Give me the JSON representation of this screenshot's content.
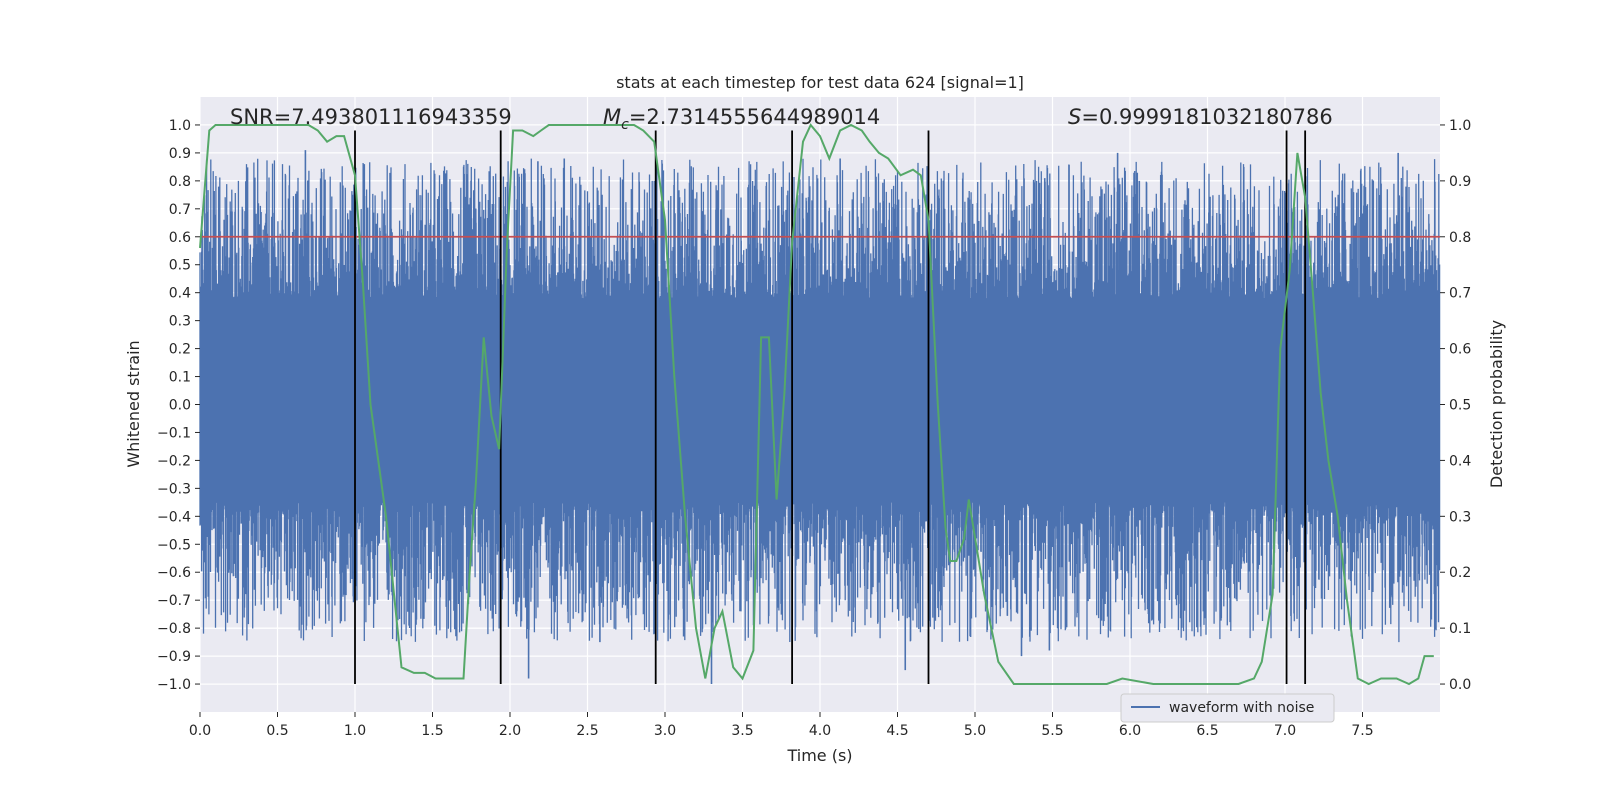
{
  "chart_data": {
    "type": "line",
    "title": "stats at each timestep for test data 624 [signal=1]",
    "xlabel": "Time (s)",
    "ylabel_left": "Whitened strain",
    "ylabel_right": "Detection probability",
    "xlim": [
      0.0,
      8.0
    ],
    "ylim_left": [
      -1.1,
      1.1
    ],
    "ylim_right": [
      -0.05,
      1.05
    ],
    "x_ticks": [
      0.0,
      0.5,
      1.0,
      1.5,
      2.0,
      2.5,
      3.0,
      3.5,
      4.0,
      4.5,
      5.0,
      5.5,
      6.0,
      6.5,
      7.0,
      7.5
    ],
    "x_tick_labels": [
      "0.0",
      "0.5",
      "1.0",
      "1.5",
      "2.0",
      "2.5",
      "3.0",
      "3.5",
      "4.0",
      "4.5",
      "5.0",
      "5.5",
      "6.0",
      "6.5",
      "7.0",
      "7.5"
    ],
    "y_left_ticks": [
      1.0,
      0.9,
      0.8,
      0.7,
      0.6,
      0.5,
      0.4,
      0.3,
      0.2,
      0.1,
      0.0,
      -0.1,
      -0.2,
      -0.3,
      -0.4,
      -0.5,
      -0.6,
      -0.7,
      -0.8,
      -0.9,
      -1.0
    ],
    "y_left_tick_labels": [
      "1.0",
      "0.9",
      "0.8",
      "0.7",
      "0.6",
      "0.5",
      "0.4",
      "0.3",
      "0.2",
      "0.1",
      "0.0",
      "−0.1",
      "−0.2",
      "−0.3",
      "−0.4",
      "−0.5",
      "−0.6",
      "−0.7",
      "−0.8",
      "−0.9",
      "−1.0"
    ],
    "y_right_ticks": [
      1.0,
      0.9,
      0.8,
      0.7,
      0.6,
      0.5,
      0.4,
      0.3,
      0.2,
      0.1,
      0.0
    ],
    "y_right_tick_labels": [
      "1.0",
      "0.9",
      "0.8",
      "0.7",
      "0.6",
      "0.5",
      "0.4",
      "0.3",
      "0.2",
      "0.1",
      "0.0"
    ],
    "grid": true,
    "annotations": {
      "snr": "SNR=7.493801116943359",
      "mc_symbol": "M",
      "mc_sub": "c",
      "mc_value": "=2.7314555644989014",
      "s_symbol": "S",
      "s_value": "=0.9999181032180786"
    },
    "threshold": {
      "value": 0.8,
      "axis": "right",
      "color": "#c44e52"
    },
    "vertical_markers": [
      1.0,
      1.94,
      2.94,
      3.82,
      4.7,
      7.01,
      7.13
    ],
    "vertical_marker_range_right": [
      0.0,
      0.99
    ],
    "series": [
      {
        "name": "waveform with noise",
        "axis": "left",
        "color": "#4c72b0",
        "style": "noise",
        "x_range": [
          0.0,
          8.0
        ],
        "core_band": [
          -0.35,
          0.38
        ],
        "max_amplitude": 1.0,
        "peaks": [
          {
            "x": 0.68,
            "y": 0.91
          },
          {
            "x": 1.06,
            "y": 0.86
          },
          {
            "x": 1.78,
            "y": 0.65
          },
          {
            "x": 2.12,
            "y": -0.98
          },
          {
            "x": 2.18,
            "y": 0.87
          },
          {
            "x": 2.35,
            "y": 0.88
          },
          {
            "x": 2.58,
            "y": -0.85
          },
          {
            "x": 3.12,
            "y": -0.83
          },
          {
            "x": 3.3,
            "y": -1.0
          },
          {
            "x": 4.13,
            "y": 0.88
          },
          {
            "x": 4.55,
            "y": -0.95
          },
          {
            "x": 5.3,
            "y": -0.9
          },
          {
            "x": 5.48,
            "y": -0.88
          },
          {
            "x": 5.45,
            "y": 0.81
          },
          {
            "x": 5.92,
            "y": 0.9
          },
          {
            "x": 6.06,
            "y": 0.8
          },
          {
            "x": 7.62,
            "y": 0.79
          },
          {
            "x": 7.73,
            "y": 0.9
          }
        ]
      },
      {
        "name": "Detection probability",
        "axis": "right",
        "color": "#55a868",
        "x": [
          0.0,
          0.06,
          0.1,
          0.2,
          0.3,
          0.4,
          0.5,
          0.6,
          0.7,
          0.76,
          0.82,
          0.88,
          0.93,
          1.0,
          1.05,
          1.1,
          1.2,
          1.3,
          1.38,
          1.45,
          1.52,
          1.58,
          1.65,
          1.7,
          1.74,
          1.78,
          1.83,
          1.88,
          1.93,
          1.98,
          2.02,
          2.08,
          2.15,
          2.2,
          2.25,
          2.33,
          2.4,
          2.5,
          2.6,
          2.7,
          2.8,
          2.86,
          2.93,
          3.0,
          3.06,
          3.13,
          3.2,
          3.26,
          3.32,
          3.37,
          3.44,
          3.5,
          3.57,
          3.62,
          3.67,
          3.72,
          3.77,
          3.82,
          3.89,
          3.94,
          4.0,
          4.06,
          4.13,
          4.2,
          4.27,
          4.32,
          4.38,
          4.44,
          4.52,
          4.6,
          4.65,
          4.7,
          4.76,
          4.81,
          4.84,
          4.88,
          4.93,
          4.96,
          5.06,
          5.15,
          5.25,
          5.35,
          5.5,
          5.65,
          5.75,
          5.85,
          5.95,
          6.15,
          6.35,
          6.55,
          6.7,
          6.8,
          6.85,
          6.92,
          6.97,
          7.03,
          7.08,
          7.13,
          7.18,
          7.23,
          7.28,
          7.34,
          7.4,
          7.47,
          7.54,
          7.62,
          7.72,
          7.8,
          7.86,
          7.9,
          7.96
        ],
        "y": [
          0.78,
          0.99,
          1.0,
          1.0,
          1.0,
          1.0,
          1.0,
          1.0,
          1.0,
          0.99,
          0.97,
          0.98,
          0.98,
          0.91,
          0.72,
          0.5,
          0.3,
          0.03,
          0.02,
          0.02,
          0.01,
          0.01,
          0.01,
          0.01,
          0.2,
          0.36,
          0.62,
          0.48,
          0.42,
          0.78,
          0.99,
          0.99,
          0.98,
          0.99,
          1.0,
          1.0,
          1.0,
          1.0,
          1.0,
          1.0,
          1.0,
          0.99,
          0.97,
          0.83,
          0.55,
          0.3,
          0.1,
          0.01,
          0.1,
          0.13,
          0.03,
          0.01,
          0.06,
          0.62,
          0.62,
          0.33,
          0.52,
          0.79,
          0.97,
          1.0,
          0.98,
          0.94,
          0.99,
          1.0,
          0.99,
          0.97,
          0.95,
          0.94,
          0.91,
          0.92,
          0.91,
          0.83,
          0.5,
          0.28,
          0.22,
          0.22,
          0.26,
          0.33,
          0.16,
          0.04,
          0.0,
          0.0,
          0.0,
          0.0,
          0.0,
          0.0,
          0.01,
          0.0,
          0.0,
          0.0,
          0.0,
          0.01,
          0.04,
          0.16,
          0.6,
          0.74,
          0.95,
          0.87,
          0.7,
          0.52,
          0.4,
          0.3,
          0.15,
          0.01,
          0.0,
          0.01,
          0.01,
          0.0,
          0.01,
          0.05,
          0.05
        ]
      }
    ],
    "legend": {
      "position": "lower-right",
      "entries": [
        "waveform with noise"
      ]
    }
  }
}
